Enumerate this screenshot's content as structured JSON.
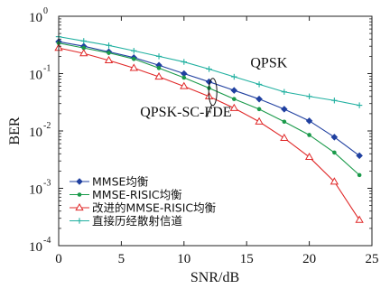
{
  "chart_data": {
    "type": "line",
    "xlabel": "SNR/dB",
    "ylabel": "BER",
    "xlim": [
      0,
      25
    ],
    "ylim": [
      0.0001,
      1
    ],
    "y_scale": "log",
    "x_ticks": [
      0,
      5,
      10,
      15,
      20,
      25
    ],
    "x_tick_labels": [
      "0",
      "5",
      "10",
      "15",
      "20",
      "25"
    ],
    "y_ticks": [
      0.0001,
      0.001,
      0.01,
      0.1,
      1
    ],
    "y_tick_labels": [
      {
        "base": "10",
        "exp": "-4"
      },
      {
        "base": "10",
        "exp": "-3"
      },
      {
        "base": "10",
        "exp": "-2"
      },
      {
        "base": "10",
        "exp": "-1"
      },
      {
        "base": "10",
        "exp": "0"
      }
    ],
    "grid": false,
    "legend_position": "bottom-left",
    "series": [
      {
        "name": "MMSE均衡",
        "color": "#2040a0",
        "marker": "diamond",
        "x": [
          0,
          2,
          4,
          6,
          8,
          10,
          12,
          14,
          16,
          18,
          20,
          22,
          24
        ],
        "y": [
          0.36,
          0.3,
          0.24,
          0.19,
          0.14,
          0.1,
          0.072,
          0.051,
          0.036,
          0.024,
          0.015,
          0.0078,
          0.0037
        ]
      },
      {
        "name": "MMSE-RISIC均衡",
        "color": "#1a9a4a",
        "marker": "dot",
        "x": [
          0,
          2,
          4,
          6,
          8,
          10,
          12,
          14,
          16,
          18,
          20,
          22,
          24
        ],
        "y": [
          0.34,
          0.28,
          0.23,
          0.18,
          0.125,
          0.085,
          0.056,
          0.036,
          0.024,
          0.0145,
          0.0085,
          0.0042,
          0.0017
        ]
      },
      {
        "name": "改进的MMSE-RISIC均衡",
        "color": "#e02828",
        "marker": "triangle",
        "x": [
          0,
          2,
          4,
          6,
          8,
          10,
          12,
          14,
          16,
          18,
          20,
          22,
          24
        ],
        "y": [
          0.28,
          0.225,
          0.17,
          0.125,
          0.088,
          0.06,
          0.04,
          0.025,
          0.0145,
          0.0075,
          0.0035,
          0.0013,
          0.00028
        ]
      },
      {
        "name": "直接历经散射信道",
        "color": "#20b0a0",
        "marker": "plus",
        "x": [
          0,
          2,
          4,
          6,
          8,
          10,
          12,
          14,
          16,
          18,
          20,
          22,
          24
        ],
        "y": [
          0.44,
          0.37,
          0.31,
          0.25,
          0.2,
          0.16,
          0.12,
          0.088,
          0.065,
          0.048,
          0.04,
          0.034,
          0.028
        ]
      }
    ],
    "annotations": [
      {
        "text": "QPSK",
        "x": 15.3,
        "y": 0.13
      },
      {
        "text": "QPSK-SC-FDE",
        "x": 6.5,
        "y": 0.018
      }
    ],
    "ellipse_annotation": {
      "x": 12.3,
      "y_center": 0.048
    }
  }
}
